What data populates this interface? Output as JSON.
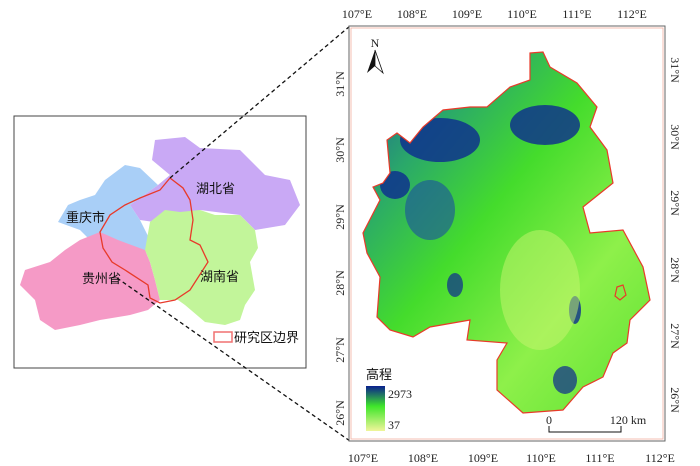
{
  "inset": {
    "provinces": [
      {
        "name": "湖北省",
        "color": "#c9a9f5"
      },
      {
        "name": "重庆市",
        "color": "#a9cff7"
      },
      {
        "name": "贵州省",
        "color": "#f59ac6"
      },
      {
        "name": "湖南省",
        "color": "#c2f59a"
      }
    ],
    "legend_label": "研究区边界",
    "boundary_color": "#e83a2a"
  },
  "main_map": {
    "lon_ticks": [
      "107°E",
      "108°E",
      "109°E",
      "110°E",
      "111°E",
      "112°E"
    ],
    "lat_ticks": [
      "31°N",
      "30°N",
      "29°N",
      "28°N",
      "27°N",
      "26°N"
    ],
    "north_label": "N",
    "legend": {
      "title": "高程",
      "max": "2973",
      "min": "37",
      "color_high": "#0a1f8f",
      "color_mid": "#3fe62a",
      "color_low": "#f0f59a"
    },
    "scale_bar": {
      "start": "0",
      "end": "120 km"
    }
  }
}
